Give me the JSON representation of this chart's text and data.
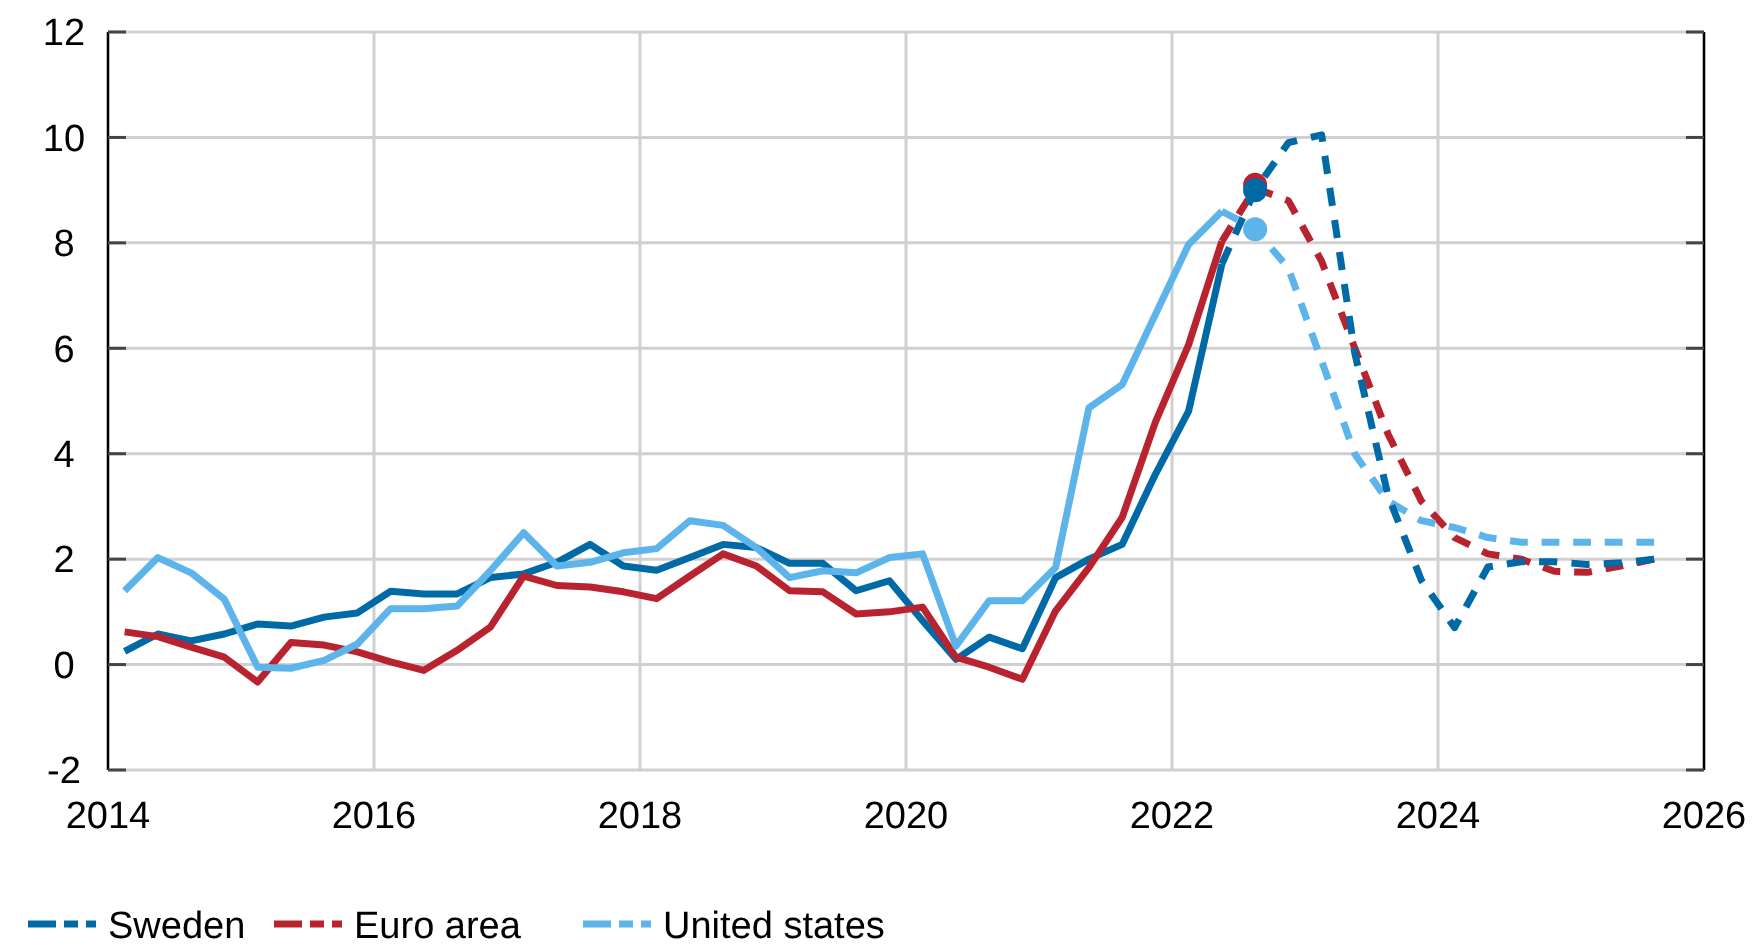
{
  "chart_data": {
    "type": "line",
    "xlim": [
      2014,
      2026
    ],
    "xticks": [
      2014,
      2016,
      2018,
      2020,
      2022,
      2024,
      2026
    ],
    "ylim": [
      -2,
      12
    ],
    "yticks": [
      -2,
      0,
      2,
      4,
      6,
      8,
      10,
      12
    ],
    "grid": true,
    "legend": "bottom",
    "series": [
      {
        "name": "Sweden",
        "color": "#006aa7",
        "line_style": "solid",
        "x": [
          2014.125,
          2014.375,
          2014.625,
          2014.875,
          2015.125,
          2015.375,
          2015.625,
          2015.875,
          2016.125,
          2016.375,
          2016.625,
          2016.875,
          2017.125,
          2017.375,
          2017.625,
          2017.875,
          2018.125,
          2018.375,
          2018.625,
          2018.875,
          2019.125,
          2019.375,
          2019.625,
          2019.875,
          2020.125,
          2020.375,
          2020.625,
          2020.875,
          2021.125,
          2021.375,
          2021.625,
          2021.875,
          2022.125,
          2022.375
        ],
        "values": [
          0.25,
          0.58,
          0.45,
          0.58,
          0.77,
          0.73,
          0.9,
          0.98,
          1.39,
          1.34,
          1.34,
          1.65,
          1.72,
          1.94,
          2.28,
          1.87,
          1.79,
          2.03,
          2.28,
          2.22,
          1.92,
          1.92,
          1.4,
          1.59,
          0.83,
          0.1,
          0.52,
          0.3,
          1.65,
          2.0,
          2.28,
          3.61,
          4.81,
          7.6
        ]
      },
      {
        "name": "Euro area",
        "color": "#b8232f",
        "line_style": "solid",
        "x": [
          2014.125,
          2014.375,
          2014.625,
          2014.875,
          2015.125,
          2015.375,
          2015.625,
          2015.875,
          2016.125,
          2016.375,
          2016.625,
          2016.875,
          2017.125,
          2017.375,
          2017.625,
          2017.875,
          2018.125,
          2018.375,
          2018.625,
          2018.875,
          2019.125,
          2019.375,
          2019.625,
          2019.875,
          2020.125,
          2020.375,
          2020.625,
          2020.875,
          2021.125,
          2021.375,
          2021.625,
          2021.875,
          2022.125,
          2022.375
        ],
        "values": [
          0.62,
          0.53,
          0.33,
          0.14,
          -0.33,
          0.42,
          0.37,
          0.24,
          0.05,
          -0.11,
          0.27,
          0.71,
          1.68,
          1.5,
          1.47,
          1.38,
          1.25,
          1.68,
          2.1,
          1.87,
          1.4,
          1.38,
          0.96,
          1.0,
          1.09,
          0.14,
          -0.05,
          -0.28,
          1.02,
          1.84,
          2.79,
          4.6,
          6.07,
          8.03
        ]
      },
      {
        "name": "United states",
        "color": "#5cb4eb",
        "line_style": "solid",
        "x": [
          2014.125,
          2014.375,
          2014.625,
          2014.875,
          2015.125,
          2015.375,
          2015.625,
          2015.875,
          2016.125,
          2016.375,
          2016.625,
          2016.875,
          2017.125,
          2017.375,
          2017.625,
          2017.875,
          2018.125,
          2018.375,
          2018.625,
          2018.875,
          2019.125,
          2019.375,
          2019.625,
          2019.875,
          2020.125,
          2020.375,
          2020.625,
          2020.875,
          2021.125,
          2021.375,
          2021.625,
          2021.875,
          2022.125,
          2022.375
        ],
        "values": [
          1.4,
          2.03,
          1.74,
          1.24,
          -0.05,
          -0.07,
          0.08,
          0.39,
          1.06,
          1.06,
          1.11,
          1.78,
          2.5,
          1.87,
          1.94,
          2.12,
          2.2,
          2.73,
          2.64,
          2.22,
          1.65,
          1.78,
          1.74,
          2.03,
          2.1,
          0.35,
          1.21,
          1.21,
          1.84,
          4.87,
          5.31,
          6.64,
          7.97,
          8.6
        ]
      },
      {
        "color": "#b8232f",
        "line_style": "dashed",
        "x": [
          2022.375,
          2022.625,
          2022.875,
          2023.125,
          2023.375,
          2023.625,
          2023.875,
          2024.125,
          2024.375,
          2024.625,
          2024.875,
          2025.125,
          2025.375,
          2025.625
        ],
        "values": [
          8.03,
          9.04,
          8.8,
          7.65,
          6.0,
          4.37,
          3.1,
          2.41,
          2.1,
          2.0,
          1.77,
          1.75,
          1.87,
          2.0
        ]
      },
      {
        "color": "#5cb4eb",
        "line_style": "dashed",
        "x": [
          2022.375,
          2022.625,
          2022.875,
          2023.125,
          2023.375,
          2023.625,
          2023.875,
          2024.125,
          2024.375,
          2024.625,
          2024.875,
          2025.125,
          2025.375,
          2025.625
        ],
        "values": [
          8.6,
          8.26,
          7.52,
          5.76,
          3.99,
          3.1,
          2.73,
          2.6,
          2.41,
          2.32,
          2.32,
          2.32,
          2.32,
          2.32
        ]
      },
      {
        "color": "#006aa7",
        "line_style": "dashed",
        "x": [
          2022.375,
          2022.625,
          2022.875,
          2023.125,
          2023.375,
          2023.625,
          2023.875,
          2024.125,
          2024.375,
          2024.625,
          2024.875,
          2025.125,
          2025.375,
          2025.625
        ],
        "values": [
          7.6,
          9.0,
          9.9,
          10.05,
          5.9,
          3.2,
          1.6,
          0.7,
          1.85,
          1.95,
          1.95,
          1.9,
          1.93,
          2.0
        ]
      },
      {
        "type": "scatter",
        "marker": "circle",
        "color": "#b8232f",
        "x": [
          2022.625
        ],
        "values": [
          9.1
        ]
      },
      {
        "type": "scatter",
        "marker": "circle",
        "color": "#5cb4eb",
        "x": [
          2022.625
        ],
        "values": [
          8.26
        ]
      },
      {
        "type": "scatter",
        "marker": "circle",
        "color": "#006aa7",
        "x": [
          2022.625
        ],
        "values": [
          9.0
        ]
      }
    ]
  }
}
